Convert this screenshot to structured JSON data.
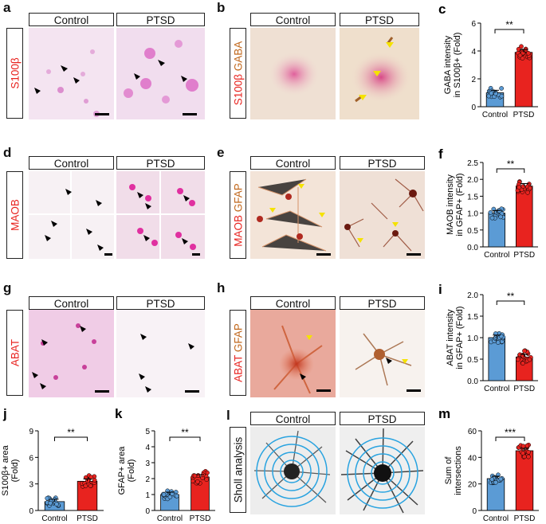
{
  "panels": {
    "a": {
      "letter": "a",
      "headers": [
        "Control",
        "PTSD"
      ],
      "stain": "S100β"
    },
    "b": {
      "letter": "b",
      "headers": [
        "Control",
        "PTSD"
      ],
      "stain_red": "S100β",
      "stain_brown": "GABA"
    },
    "c": {
      "letter": "c"
    },
    "d": {
      "letter": "d",
      "headers": [
        "Control",
        "PTSD"
      ],
      "stain": "MAOB"
    },
    "e": {
      "letter": "e",
      "headers": [
        "Control",
        "PTSD"
      ],
      "stain_red": "MAOB",
      "stain_brown": "GFAP"
    },
    "f": {
      "letter": "f"
    },
    "g": {
      "letter": "g",
      "headers": [
        "Control",
        "PTSD"
      ],
      "stain": "ABAT"
    },
    "h": {
      "letter": "h",
      "headers": [
        "Control",
        "PTSD"
      ],
      "stain_red": "ABAT",
      "stain_brown": "GFAP"
    },
    "i": {
      "letter": "i"
    },
    "j": {
      "letter": "j"
    },
    "k": {
      "letter": "k"
    },
    "l": {
      "letter": "l",
      "headers": [
        "Control",
        "PTSD"
      ],
      "side_label": "Sholl analysis"
    },
    "m": {
      "letter": "m"
    }
  },
  "colors": {
    "control": "#5b9bd5",
    "ptsd": "#e8231f",
    "pink_stain": "#e040a0",
    "brown_stain": "#b5651d"
  },
  "chart_data": [
    {
      "id": "c",
      "type": "bar",
      "categories": [
        "Control",
        "PTSD"
      ],
      "values": [
        1.0,
        3.9
      ],
      "ylabel": "GABA intensity in S100β+ (Fold)",
      "ylim": [
        0,
        6
      ],
      "yticks": [
        0,
        2,
        4,
        6
      ],
      "significance": "**"
    },
    {
      "id": "f",
      "type": "bar",
      "categories": [
        "Control",
        "PTSD"
      ],
      "values": [
        1.0,
        1.8
      ],
      "ylabel": "MAOB intensity in GFAP+ (Fold)",
      "ylim": [
        0,
        2.5
      ],
      "yticks": [
        0.0,
        0.5,
        1.0,
        1.5,
        2.0,
        2.5
      ],
      "significance": "**"
    },
    {
      "id": "i",
      "type": "bar",
      "categories": [
        "Control",
        "PTSD"
      ],
      "values": [
        1.0,
        0.55
      ],
      "ylabel": "ABAT intensity in GFAP+ (Fold)",
      "ylim": [
        0,
        2.0
      ],
      "yticks": [
        0.0,
        0.5,
        1.0,
        1.5,
        2.0
      ],
      "significance": "**"
    },
    {
      "id": "j",
      "type": "bar",
      "categories": [
        "Control",
        "PTSD"
      ],
      "values": [
        1.0,
        3.3
      ],
      "ylabel": "S100β+ area (Fold)",
      "ylim": [
        0,
        9
      ],
      "yticks": [
        0,
        3,
        6,
        9
      ],
      "significance": "**"
    },
    {
      "id": "k",
      "type": "bar",
      "categories": [
        "Control",
        "PTSD"
      ],
      "values": [
        1.0,
        2.1
      ],
      "ylabel": "GFAP+ area (Fold)",
      "ylim": [
        0,
        5
      ],
      "yticks": [
        0,
        1,
        2,
        3,
        4,
        5
      ],
      "significance": "**"
    },
    {
      "id": "m",
      "type": "bar",
      "categories": [
        "Control",
        "PTSD"
      ],
      "values": [
        24,
        45
      ],
      "ylabel": "Sum of intersections",
      "ylim": [
        0,
        60
      ],
      "yticks": [
        0,
        20,
        40,
        60
      ],
      "significance": "***"
    }
  ]
}
